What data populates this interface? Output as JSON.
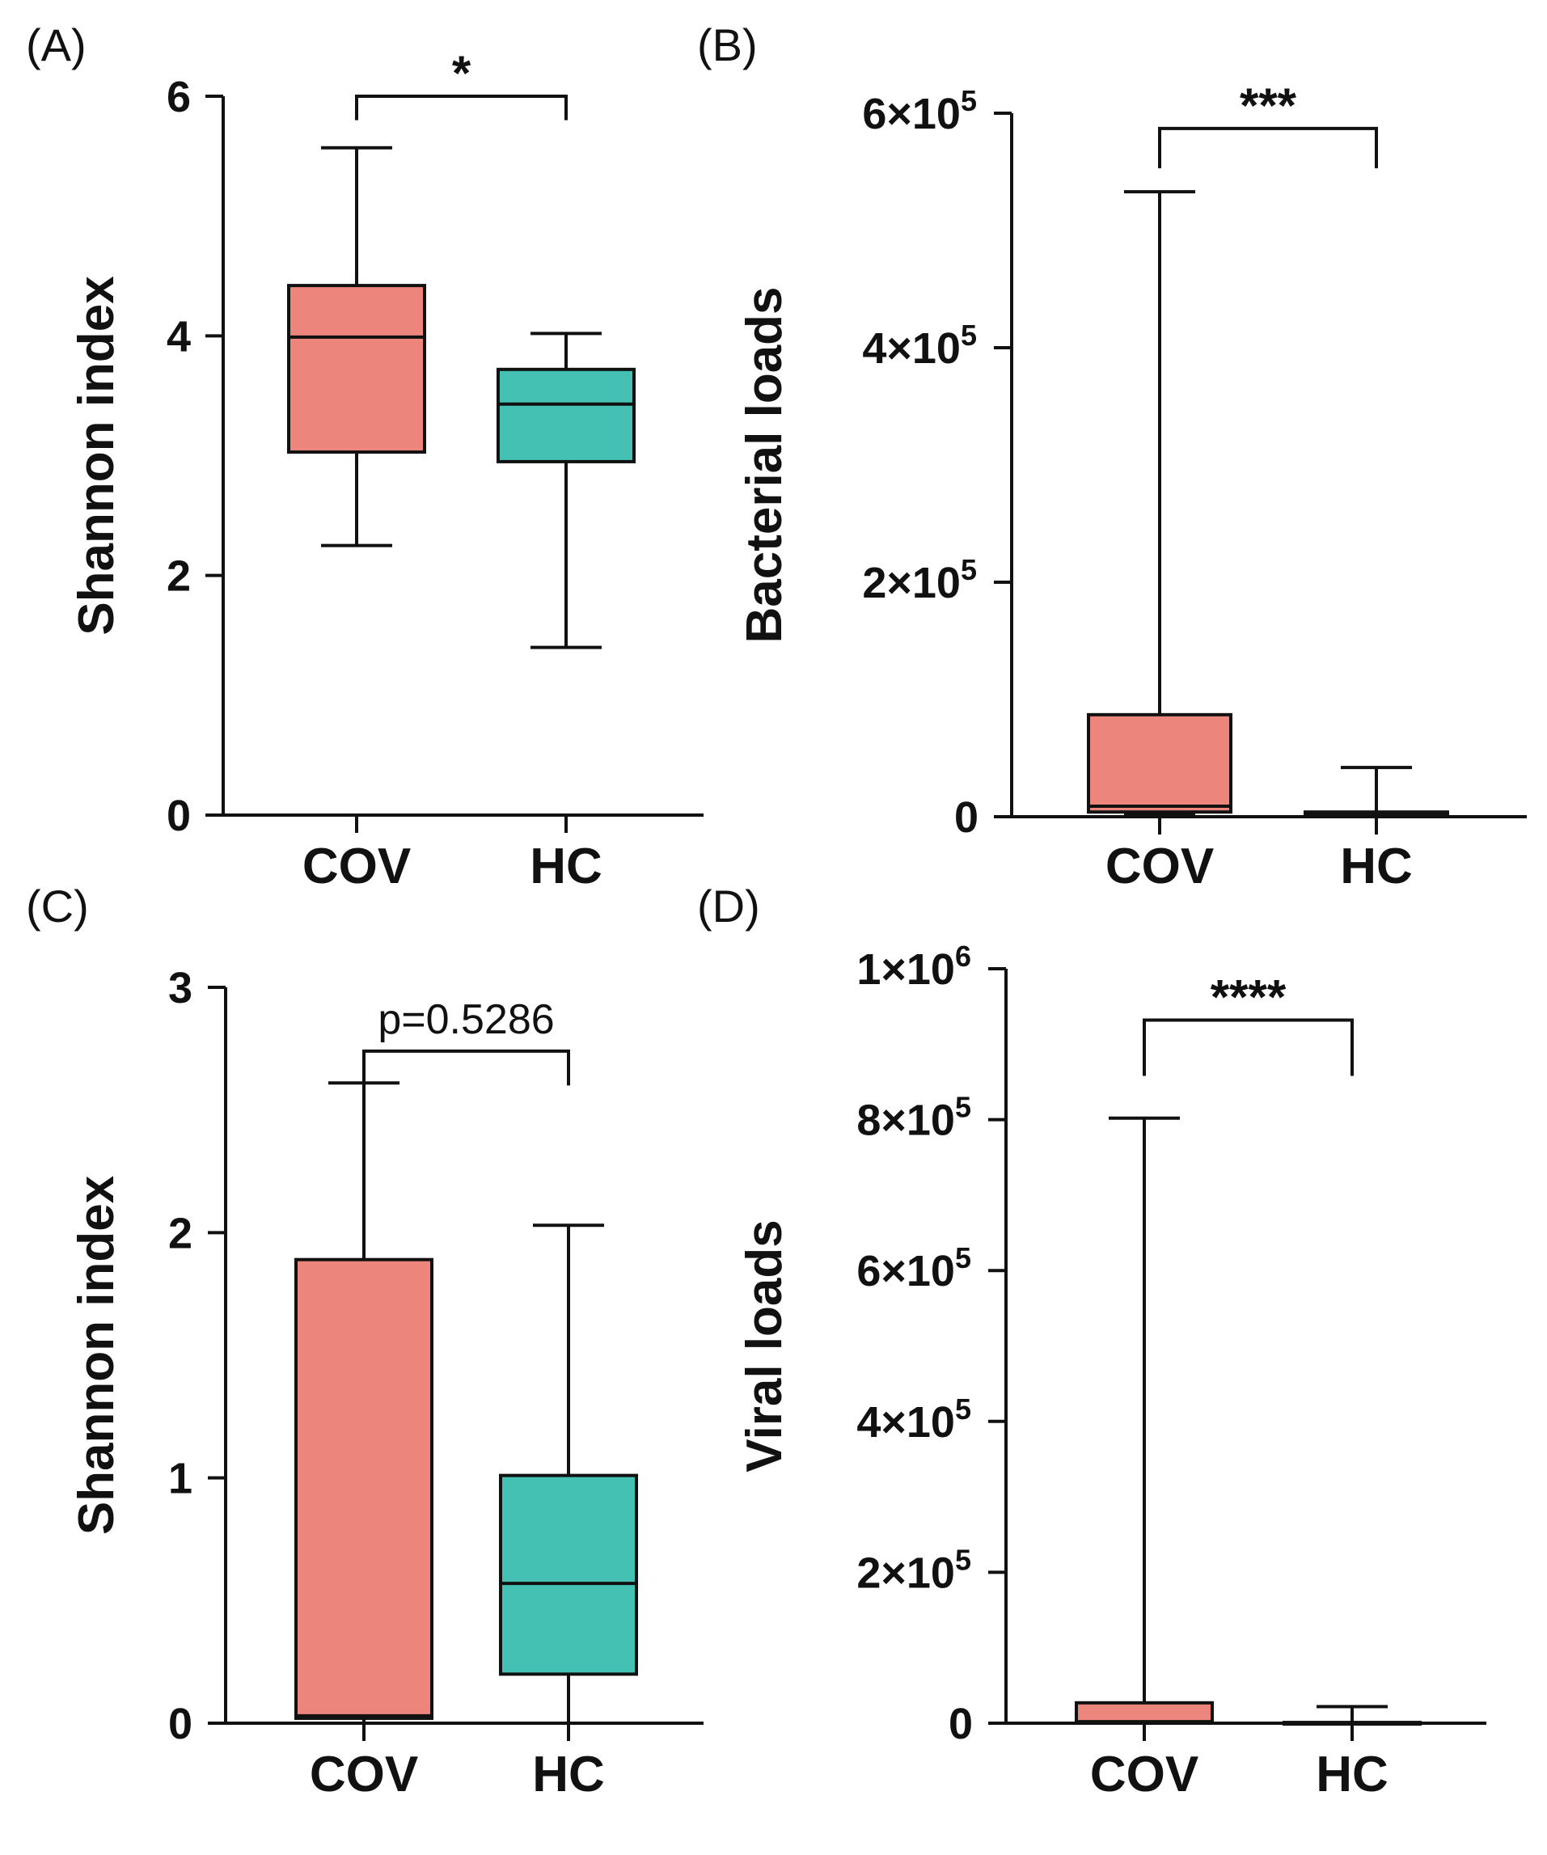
{
  "chart_data": [
    {
      "panel": "(A)",
      "type": "box",
      "ylabel": "Shannon index",
      "xlabel": "",
      "ylim": [
        0,
        6
      ],
      "yticks": [
        0,
        2,
        4,
        6
      ],
      "ytick_labels": [
        "0",
        "2",
        "4",
        "6"
      ],
      "categories": [
        "COV",
        "HC"
      ],
      "boxes": [
        {
          "name": "COV",
          "color": "#EC857C",
          "whisker_low": 2.25,
          "q1": 3.03,
          "median": 3.99,
          "q3": 4.42,
          "whisker_high": 5.57
        },
        {
          "name": "HC",
          "color": "#45C1B4",
          "whisker_low": 1.4,
          "q1": 2.95,
          "median": 3.43,
          "q3": 3.72,
          "whisker_high": 4.02
        }
      ],
      "significance": {
        "label": "*",
        "bracket_top": 6.0,
        "bracket_bottom": 5.8
      }
    },
    {
      "panel": "(B)",
      "type": "box",
      "ylabel": "Bacterial loads",
      "xlabel": "",
      "ylim": [
        0,
        600000
      ],
      "yticks": [
        0,
        200000,
        400000,
        600000
      ],
      "ytick_labels": [
        {
          "base": "0",
          "exp": ""
        },
        {
          "base": "2×10",
          "exp": "5"
        },
        {
          "base": "4×10",
          "exp": "5"
        },
        {
          "base": "6×10",
          "exp": "5"
        }
      ],
      "categories": [
        "COV",
        "HC"
      ],
      "boxes": [
        {
          "name": "COV",
          "color": "#EC857C",
          "whisker_low": 2000,
          "q1": 4000,
          "median": 9000,
          "q3": 87000,
          "whisker_high": 533000
        },
        {
          "name": "HC",
          "color": "#45C1B4",
          "whisker_low": 0,
          "q1": 1000,
          "median": 2500,
          "q3": 4000,
          "whisker_high": 42000
        }
      ],
      "significance": {
        "label": "***",
        "bracket_top": 587000,
        "bracket_bottom": 553000
      }
    },
    {
      "panel": "(C)",
      "type": "box",
      "ylabel": "Shannon index",
      "xlabel": "",
      "ylim": [
        0,
        3
      ],
      "yticks": [
        0,
        1,
        2,
        3
      ],
      "ytick_labels": [
        "0",
        "1",
        "2",
        "3"
      ],
      "categories": [
        "COV",
        "HC"
      ],
      "boxes": [
        {
          "name": "COV",
          "color": "#EC857C",
          "whisker_low": 0.0,
          "q1": 0.02,
          "median": 0.03,
          "q3": 1.89,
          "whisker_high": 2.61
        },
        {
          "name": "HC",
          "color": "#45C1B4",
          "whisker_low": 0.0,
          "q1": 0.2,
          "median": 0.57,
          "q3": 1.01,
          "whisker_high": 2.03
        }
      ],
      "significance": {
        "label": "p=0.5286",
        "bracket_top": 2.74,
        "bracket_bottom": 2.6
      }
    },
    {
      "panel": "(D)",
      "type": "box",
      "ylabel": "Viral loads",
      "xlabel": "",
      "ylim": [
        0,
        1000000
      ],
      "yticks": [
        0,
        200000,
        400000,
        600000,
        800000,
        1000000
      ],
      "ytick_labels": [
        {
          "base": "0",
          "exp": ""
        },
        {
          "base": "2×10",
          "exp": "5"
        },
        {
          "base": "4×10",
          "exp": "5"
        },
        {
          "base": "6×10",
          "exp": "5"
        },
        {
          "base": "8×10",
          "exp": "5"
        },
        {
          "base": "1×10",
          "exp": "6"
        }
      ],
      "categories": [
        "COV",
        "HC"
      ],
      "boxes": [
        {
          "name": "COV",
          "color": "#EC857C",
          "whisker_low": 0,
          "q1": 1000,
          "median": 2000,
          "q3": 27000,
          "whisker_high": 802000
        },
        {
          "name": "HC",
          "color": "#45C1B4",
          "whisker_low": 0,
          "q1": 0,
          "median": 500,
          "q3": 1000,
          "whisker_high": 22000
        }
      ],
      "significance": {
        "label": "****",
        "bracket_top": 932000,
        "bracket_bottom": 858000
      }
    }
  ]
}
